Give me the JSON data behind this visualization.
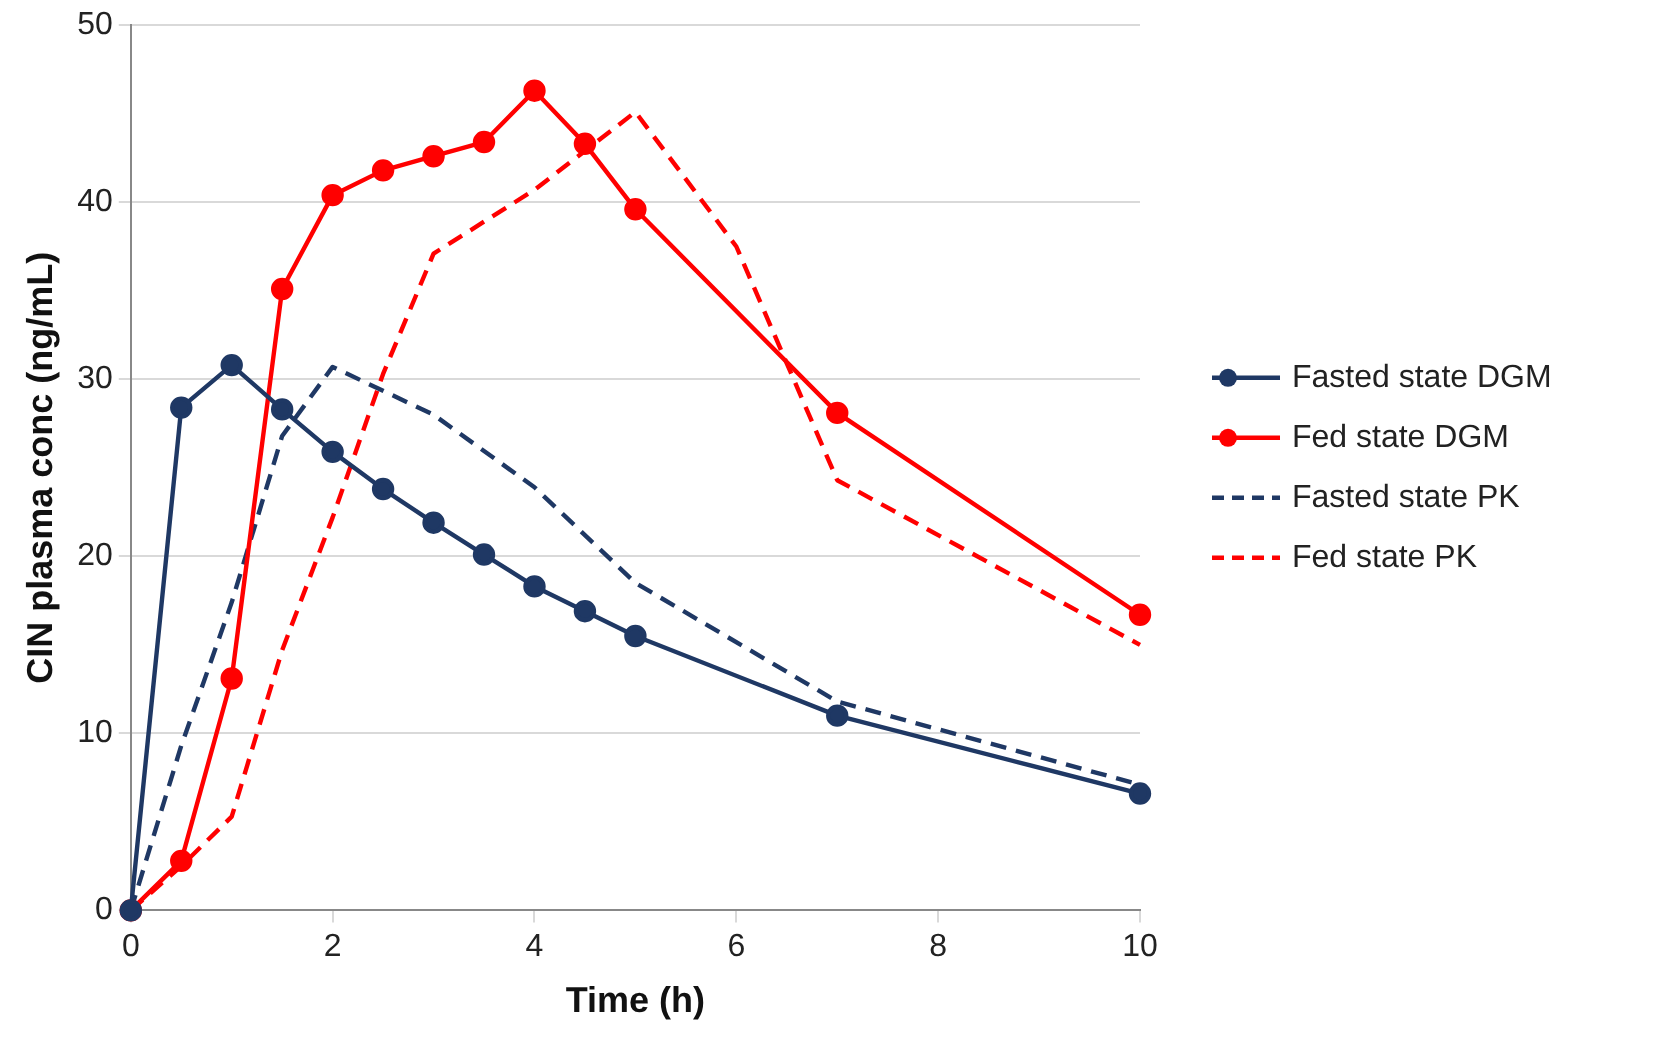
{
  "chart_data": {
    "type": "line",
    "xlabel": "Time (h)",
    "ylabel": "CIN plasma conc (ng/mL)",
    "xlim": [
      0,
      10
    ],
    "xticks": [
      0,
      2,
      4,
      6,
      8,
      10
    ],
    "ylim": [
      0,
      50
    ],
    "yticks": [
      0,
      10,
      20,
      30,
      40,
      50
    ],
    "grid": "y",
    "legend": "right",
    "series": [
      {
        "name": "Fasted state DGM",
        "color": "#1f3864",
        "marker": "circle",
        "line_style": "solid",
        "x": [
          0,
          0.5,
          1,
          1.5,
          2,
          2.5,
          3,
          3.5,
          4,
          4.5,
          5,
          7,
          10
        ],
        "values": [
          0,
          28.4,
          30.8,
          28.3,
          25.9,
          23.8,
          21.9,
          20.1,
          18.3,
          16.9,
          15.5,
          11.0,
          6.6
        ]
      },
      {
        "name": "Fed state DGM",
        "color": "#ff0000",
        "marker": "circle",
        "line_style": "solid",
        "x": [
          0,
          0.5,
          1,
          1.5,
          2,
          2.5,
          3,
          3.5,
          4,
          4.5,
          5,
          7,
          10
        ],
        "values": [
          0,
          2.8,
          13.1,
          35.1,
          40.4,
          41.8,
          42.6,
          43.4,
          46.3,
          43.3,
          39.6,
          28.1,
          16.7
        ]
      },
      {
        "name": "Fasted state PK",
        "color": "#1f3864",
        "marker": "none",
        "line_style": "dashed",
        "x": [
          0,
          0.5,
          1,
          1.5,
          2,
          3,
          4,
          5,
          7,
          10
        ],
        "values": [
          0,
          9.3,
          17.4,
          26.8,
          30.7,
          28,
          23.9,
          18.5,
          11.8,
          7.1
        ]
      },
      {
        "name": "Fed state PK",
        "color": "#ff0000",
        "marker": "none",
        "line_style": "dashed",
        "x": [
          0,
          0.5,
          1,
          1.5,
          2,
          2.5,
          3,
          4,
          5,
          6,
          7,
          10
        ],
        "values": [
          0,
          2.5,
          5.3,
          14.7,
          22.2,
          30.3,
          37.1,
          40.7,
          45.1,
          37.5,
          24.3,
          15
        ]
      }
    ]
  }
}
